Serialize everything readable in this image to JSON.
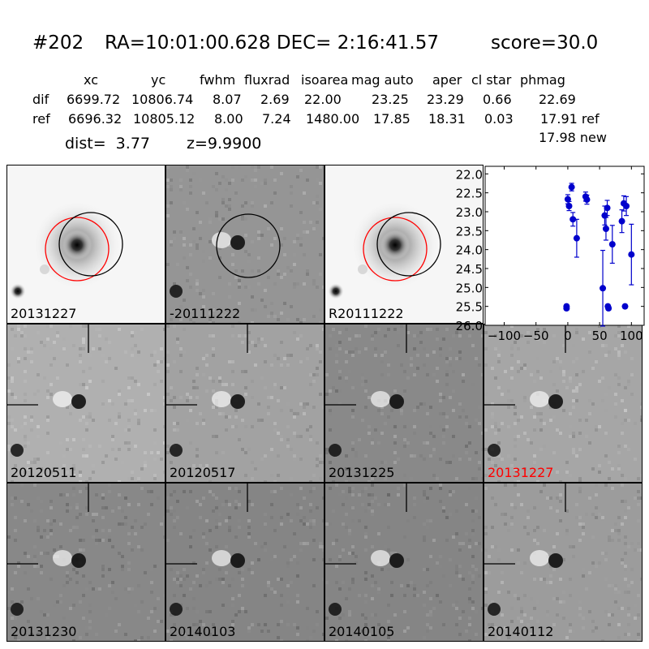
{
  "header": {
    "title_id": "#202",
    "title_coords": "RA=10:01:00.628 DEC= 2:16:41.57",
    "title_score": "score=30.0",
    "columns": [
      "xc",
      "yc",
      "fwhm",
      "fluxrad",
      "isoarea",
      "mag auto",
      "aper",
      "cl star",
      "phmag"
    ],
    "rows": [
      {
        "label": "dif",
        "values": [
          "6699.72",
          "10806.74",
          "8.07",
          "2.69",
          "22.00",
          "23.25",
          "23.29",
          "0.66",
          "22.69"
        ]
      },
      {
        "label": "ref",
        "values": [
          "6696.32",
          "10805.12",
          "8.00",
          "7.24",
          "1480.00",
          "17.85",
          "18.31",
          "0.03",
          "17.91 ref"
        ]
      }
    ],
    "new_phmag": "17.98 new",
    "dist": "dist=  3.77",
    "z": "z=9.9900"
  },
  "panels": [
    {
      "label": "20131227",
      "style": "galaxy",
      "label_color": "#000000"
    },
    {
      "label": "-20111222",
      "style": "diff",
      "label_color": "#000000"
    },
    {
      "label": "R20111222",
      "style": "galaxy",
      "label_color": "#000000"
    },
    {
      "label": "20120511",
      "style": "diff",
      "label_color": "#000000"
    },
    {
      "label": "20120517",
      "style": "diff",
      "label_color": "#000000"
    },
    {
      "label": "20131225",
      "style": "diff",
      "label_color": "#000000"
    },
    {
      "label": "20131227",
      "style": "diff",
      "label_color": "#ff0000"
    },
    {
      "label": "20131230",
      "style": "diff",
      "label_color": "#000000"
    },
    {
      "label": "20140103",
      "style": "diff",
      "label_color": "#000000"
    },
    {
      "label": "20140105",
      "style": "diff",
      "label_color": "#000000"
    },
    {
      "label": "20140112",
      "style": "diff",
      "label_color": "#000000"
    }
  ],
  "chart_data": {
    "type": "scatter",
    "xlim": [
      -130,
      120
    ],
    "ylim": [
      26.0,
      21.8
    ],
    "y_inverted": true,
    "xticks": [
      -100,
      -50,
      0,
      50,
      100
    ],
    "xtick_labels": [
      "−100",
      "−50",
      "0",
      "50",
      "100"
    ],
    "yticks": [
      22.0,
      22.5,
      23.0,
      23.5,
      24.0,
      24.5,
      25.0,
      25.5,
      26.0
    ],
    "ytick_labels": [
      "22.0",
      "22.5",
      "23.0",
      "23.5",
      "24.0",
      "24.5",
      "25.0",
      "25.5",
      "26.0"
    ],
    "marker_color": "#0000cc",
    "points": [
      {
        "x": -2,
        "y": 25.55,
        "err": 0.05
      },
      {
        "x": -2,
        "y": 25.5,
        "err": 0.05
      },
      {
        "x": 0,
        "y": 22.67,
        "err": 0.12
      },
      {
        "x": 2,
        "y": 22.85,
        "err": 0.12
      },
      {
        "x": 6,
        "y": 22.35,
        "err": 0.1
      },
      {
        "x": 8,
        "y": 23.2,
        "err": 0.18
      },
      {
        "x": 14,
        "y": 23.7,
        "err": 0.5
      },
      {
        "x": 28,
        "y": 22.6,
        "err": 0.12
      },
      {
        "x": 30,
        "y": 22.68,
        "err": 0.12
      },
      {
        "x": 55,
        "y": 25.02,
        "err": 1.0
      },
      {
        "x": 58,
        "y": 23.1,
        "err": 0.25
      },
      {
        "x": 60,
        "y": 23.45,
        "err": 0.3
      },
      {
        "x": 62,
        "y": 22.9,
        "err": 0.2
      },
      {
        "x": 63,
        "y": 25.5,
        "err": 0.05
      },
      {
        "x": 64,
        "y": 25.55,
        "err": 0.05
      },
      {
        "x": 70,
        "y": 23.86,
        "err": 0.5
      },
      {
        "x": 85,
        "y": 23.25,
        "err": 0.3
      },
      {
        "x": 88,
        "y": 22.78,
        "err": 0.2
      },
      {
        "x": 90,
        "y": 25.5,
        "err": 0.05
      },
      {
        "x": 92,
        "y": 22.85,
        "err": 0.25
      },
      {
        "x": 100,
        "y": 24.13,
        "err": 0.8
      }
    ]
  }
}
